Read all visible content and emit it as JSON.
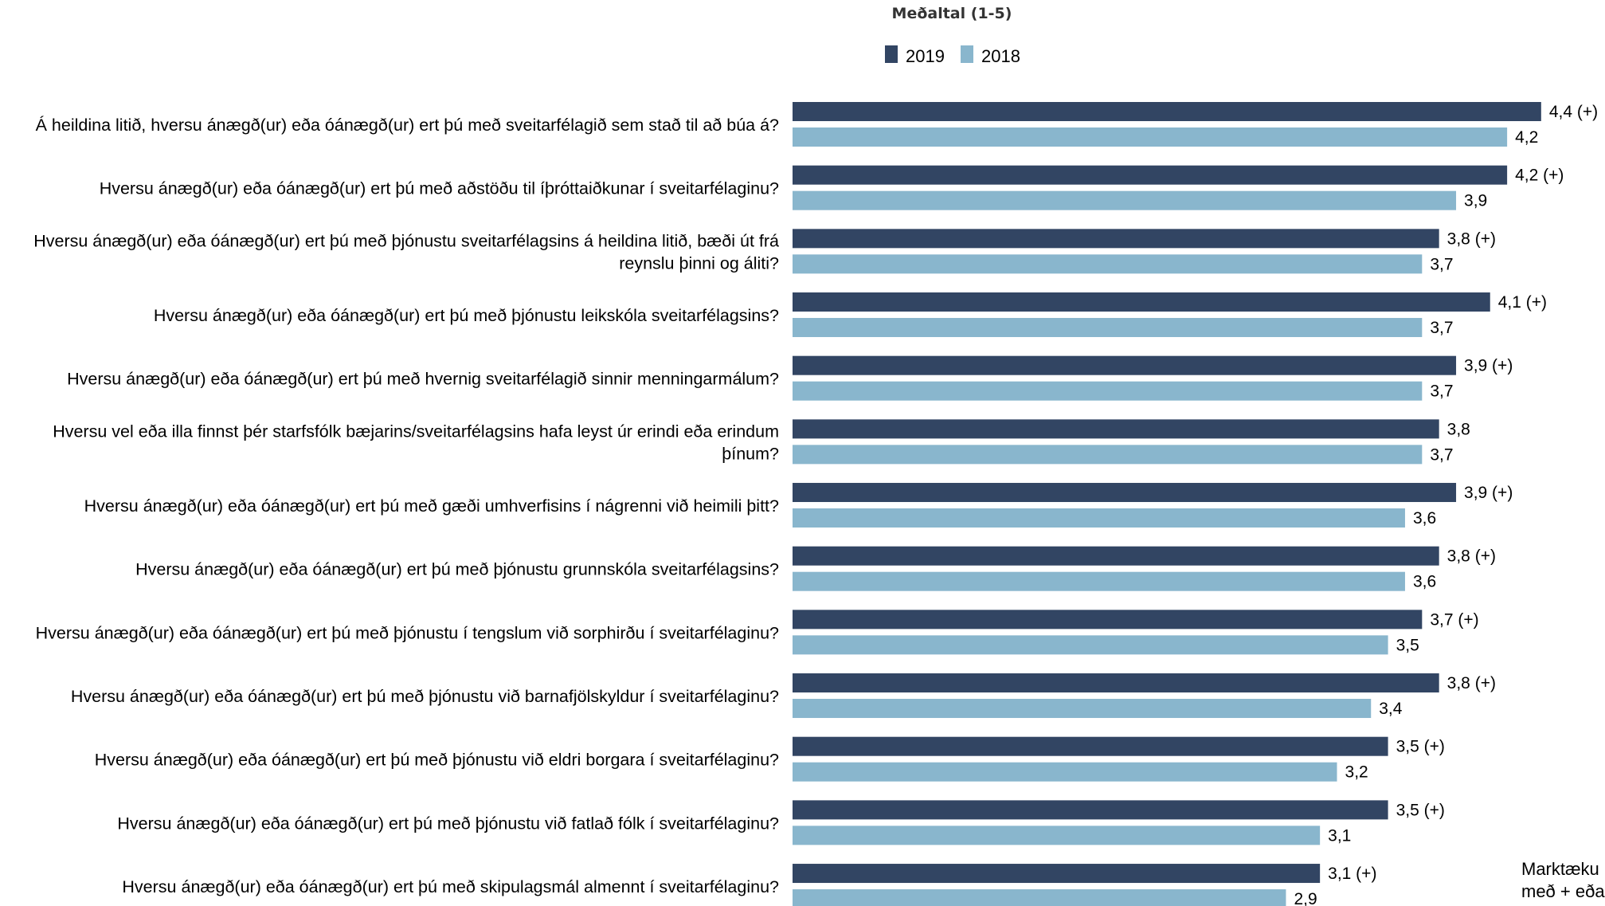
{
  "chart_data": {
    "type": "bar",
    "orientation": "horizontal",
    "title": "Meðaltal (1-5)",
    "xlim": [
      0,
      5
    ],
    "grid": false,
    "legend": "top",
    "colors": {
      "2019": "#324563",
      "2018": "#89b6cd"
    },
    "categories": [
      "Á heildina litið, hversu ánægð(ur) eða óánægð(ur) ert þú með sveitarfélagið sem stað til að búa á?",
      "Hversu ánægð(ur) eða óánægð(ur) ert þú með aðstöðu til íþróttaiðkunar í sveitarfélaginu?",
      "Hversu ánægð(ur) eða óánægð(ur) ert þú með þjónustu sveitarfélagsins á heildina litið, bæði út frá reynslu þinni og áliti?",
      "Hversu ánægð(ur) eða óánægð(ur) ert þú með þjónustu leikskóla sveitarfélagsins?",
      "Hversu ánægð(ur) eða óánægð(ur) ert þú með hvernig sveitarfélagið sinnir menningarmálum?",
      "Hversu vel eða illa finnst þér starfsfólk bæjarins/sveitarfélagsins hafa leyst úr erindi eða erindum þínum?",
      "Hversu ánægð(ur) eða óánægð(ur) ert þú með gæði umhverfisins í nágrenni við heimili þitt?",
      "Hversu ánægð(ur) eða óánægð(ur) ert þú með þjónustu grunnskóla sveitarfélagsins?",
      "Hversu ánægð(ur) eða óánægð(ur) ert þú með þjónustu í tengslum við sorphirðu í sveitarfélaginu?",
      "Hversu ánægð(ur) eða óánægð(ur) ert þú með þjónustu við barnafjölskyldur í sveitarfélaginu?",
      "Hversu ánægð(ur) eða óánægð(ur) ert þú með þjónustu við eldri borgara í sveitarfélaginu?",
      "Hversu ánægð(ur) eða óánægð(ur) ert þú með þjónustu við fatlað fólk í sveitarfélaginu?",
      "Hversu ánægð(ur) eða óánægð(ur) ert þú með skipulagsmál almennt í sveitarfélaginu?"
    ],
    "label_lines": [
      [
        "Á heildina litið, hversu ánægð(ur) eða óánægð(ur) ert þú með sveitarfélagið sem stað til að búa á?"
      ],
      [
        "Hversu ánægð(ur) eða óánægð(ur) ert þú með aðstöðu til íþróttaiðkunar í sveitarfélaginu?"
      ],
      [
        "Hversu ánægð(ur) eða óánægð(ur) ert þú með þjónustu sveitarfélagsins á heildina litið, bæði út frá",
        "reynslu þinni og áliti?"
      ],
      [
        "Hversu ánægð(ur) eða óánægð(ur) ert þú með þjónustu leikskóla sveitarfélagsins?"
      ],
      [
        "Hversu ánægð(ur) eða óánægð(ur) ert þú með hvernig sveitarfélagið sinnir menningarmálum?"
      ],
      [
        "Hversu vel eða illa finnst þér starfsfólk bæjarins/sveitarfélagsins hafa leyst úr erindi eða erindum",
        "þínum?"
      ],
      [
        "Hversu ánægð(ur) eða óánægð(ur) ert þú með gæði umhverfisins í nágrenni við heimili þitt?"
      ],
      [
        "Hversu ánægð(ur) eða óánægð(ur) ert þú með þjónustu grunnskóla sveitarfélagsins?"
      ],
      [
        "Hversu ánægð(ur) eða óánægð(ur) ert þú með þjónustu í tengslum við sorphirðu í sveitarfélaginu?"
      ],
      [
        "Hversu ánægð(ur) eða óánægð(ur) ert þú með þjónustu við barnafjölskyldur í sveitarfélaginu?"
      ],
      [
        "Hversu ánægð(ur) eða óánægð(ur) ert þú með þjónustu við eldri borgara í sveitarfélaginu?"
      ],
      [
        "Hversu ánægð(ur) eða óánægð(ur) ert þú með þjónustu við fatlað fólk í sveitarfélaginu?"
      ],
      [
        "Hversu ánægð(ur) eða óánægð(ur) ert þú með skipulagsmál almennt í sveitarfélaginu?"
      ]
    ],
    "series": [
      {
        "name": "2019",
        "values": [
          4.4,
          4.2,
          3.8,
          4.1,
          3.9,
          3.8,
          3.9,
          3.8,
          3.7,
          3.8,
          3.5,
          3.5,
          3.1
        ],
        "labels": [
          "4,4 (+)",
          "4,2 (+)",
          "3,8 (+)",
          "4,1 (+)",
          "3,9 (+)",
          "3,8",
          "3,9 (+)",
          "3,8 (+)",
          "3,7 (+)",
          "3,8 (+)",
          "3,5 (+)",
          "3,5 (+)",
          "3,1 (+)"
        ]
      },
      {
        "name": "2018",
        "values": [
          4.2,
          3.9,
          3.7,
          3.7,
          3.7,
          3.7,
          3.6,
          3.6,
          3.5,
          3.4,
          3.2,
          3.1,
          2.9
        ],
        "labels": [
          "4,2",
          "3,9",
          "3,7",
          "3,7",
          "3,7",
          "3,7",
          "3,6",
          "3,6",
          "3,5",
          "3,4",
          "3,2",
          "3,1",
          "2,9"
        ]
      }
    ],
    "note_lines": [
      "Marktæku",
      "með + eða"
    ]
  }
}
